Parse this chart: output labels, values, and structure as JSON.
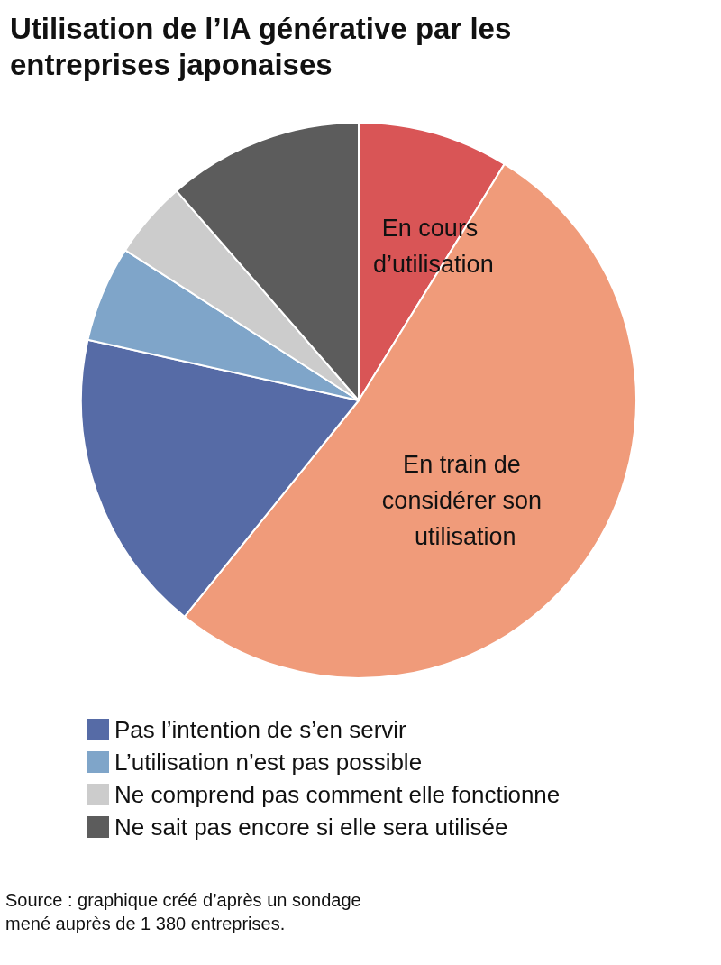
{
  "chart_data": {
    "type": "pie",
    "title": "Utilisation de l’IA générative par les entreprises japonaises",
    "categories": [
      "En cours d’utilisation",
      "En train de considérer son utilisation",
      "Pas l’intention de s’en servir",
      "L’utilisation n’est pas possible",
      "Ne comprend pas comment elle fonctionne",
      "Ne sait pas encore si elle sera utilisée"
    ],
    "values": [
      8.8,
      52.0,
      17.7,
      5.6,
      4.5,
      11.4
    ],
    "colors": [
      "#d95556",
      "#f09b7a",
      "#566ba6",
      "#7fa5c9",
      "#cccccc",
      "#5c5c5c"
    ],
    "legend": "bottom",
    "annotations": [
      "Source : graphique créé d’après un sondage mené auprès de 1 380 entreprises."
    ]
  }
}
